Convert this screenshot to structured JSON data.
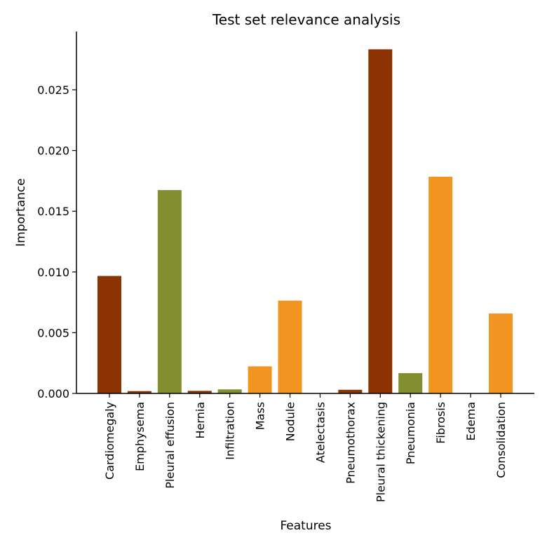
{
  "chart_data": {
    "type": "bar",
    "title": "Test set relevance analysis",
    "xlabel": "Features",
    "ylabel": "Importance",
    "ylim": [
      0,
      0.0297
    ],
    "yticks": [
      0.0,
      0.005,
      0.01,
      0.015,
      0.02,
      0.025
    ],
    "ytick_labels": [
      "0.000",
      "0.005",
      "0.010",
      "0.015",
      "0.020",
      "0.025"
    ],
    "grid": false,
    "legend": null,
    "categories": [
      "Cardiomegaly",
      "Emphysema",
      "Pleural effusion",
      "Hernia",
      "Infiltration",
      "Mass",
      "Nodule",
      "Atelectasis",
      "Pneumothorax",
      "Pleural thickening",
      "Pneumonia",
      "Fibrosis",
      "Edema",
      "Consolidation"
    ],
    "values": [
      0.00967,
      0.00019,
      0.01674,
      0.00021,
      0.00033,
      0.00223,
      0.00764,
      2e-05,
      0.0003,
      0.02833,
      0.00167,
      0.01784,
      0.0,
      0.00658
    ],
    "colors": [
      "#8c3304",
      "#8c3304",
      "#828e30",
      "#8c3304",
      "#828e30",
      "#f29420",
      "#f29420",
      "#f29420",
      "#8c3304",
      "#8c3304",
      "#828e30",
      "#f29420",
      "#f29420",
      "#f29420"
    ]
  }
}
